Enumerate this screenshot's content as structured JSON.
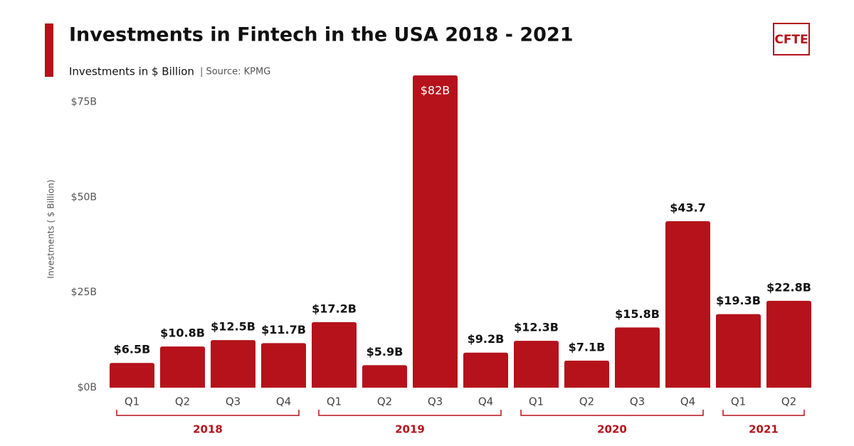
{
  "chart_data": {
    "type": "bar",
    "title": "Investments in Fintech in the USA  2018 - 2021",
    "subtitle": "Investments in $ Billion",
    "source": "| Source: KPMG",
    "logo": "CFTE",
    "ylabel": "Investments ( $ Billion)",
    "groups": [
      {
        "name": "2018",
        "categories": [
          "Q1",
          "Q2",
          "Q3",
          "Q4"
        ]
      },
      {
        "name": "2019",
        "categories": [
          "Q1",
          "Q2",
          "Q3",
          "Q4"
        ]
      },
      {
        "name": "2020",
        "categories": [
          "Q1",
          "Q2",
          "Q3",
          "Q4"
        ]
      },
      {
        "name": "2021",
        "categories": [
          "Q1",
          "Q2"
        ]
      }
    ],
    "values": [
      6.5,
      10.8,
      12.5,
      11.7,
      17.2,
      5.9,
      82,
      9.2,
      12.3,
      7.1,
      15.8,
      43.7,
      19.3,
      22.8
    ],
    "value_labels": [
      "$6.5B",
      "$10.8B",
      "$12.5B",
      "$11.7B",
      "$17.2B",
      "$5.9B",
      "$82B",
      "$9.2B",
      "$12.3B",
      "$7.1B",
      "$15.8B",
      "$43.7",
      "$19.3B",
      "$22.8B"
    ],
    "color": "#b5121b",
    "ylim": [
      0,
      82
    ],
    "yticks": [
      {
        "value": 0,
        "label": "$0B"
      },
      {
        "value": 25,
        "label": "$25B"
      },
      {
        "value": 50,
        "label": "$50B"
      },
      {
        "value": 75,
        "label": "$75B"
      }
    ],
    "grid": false
  }
}
